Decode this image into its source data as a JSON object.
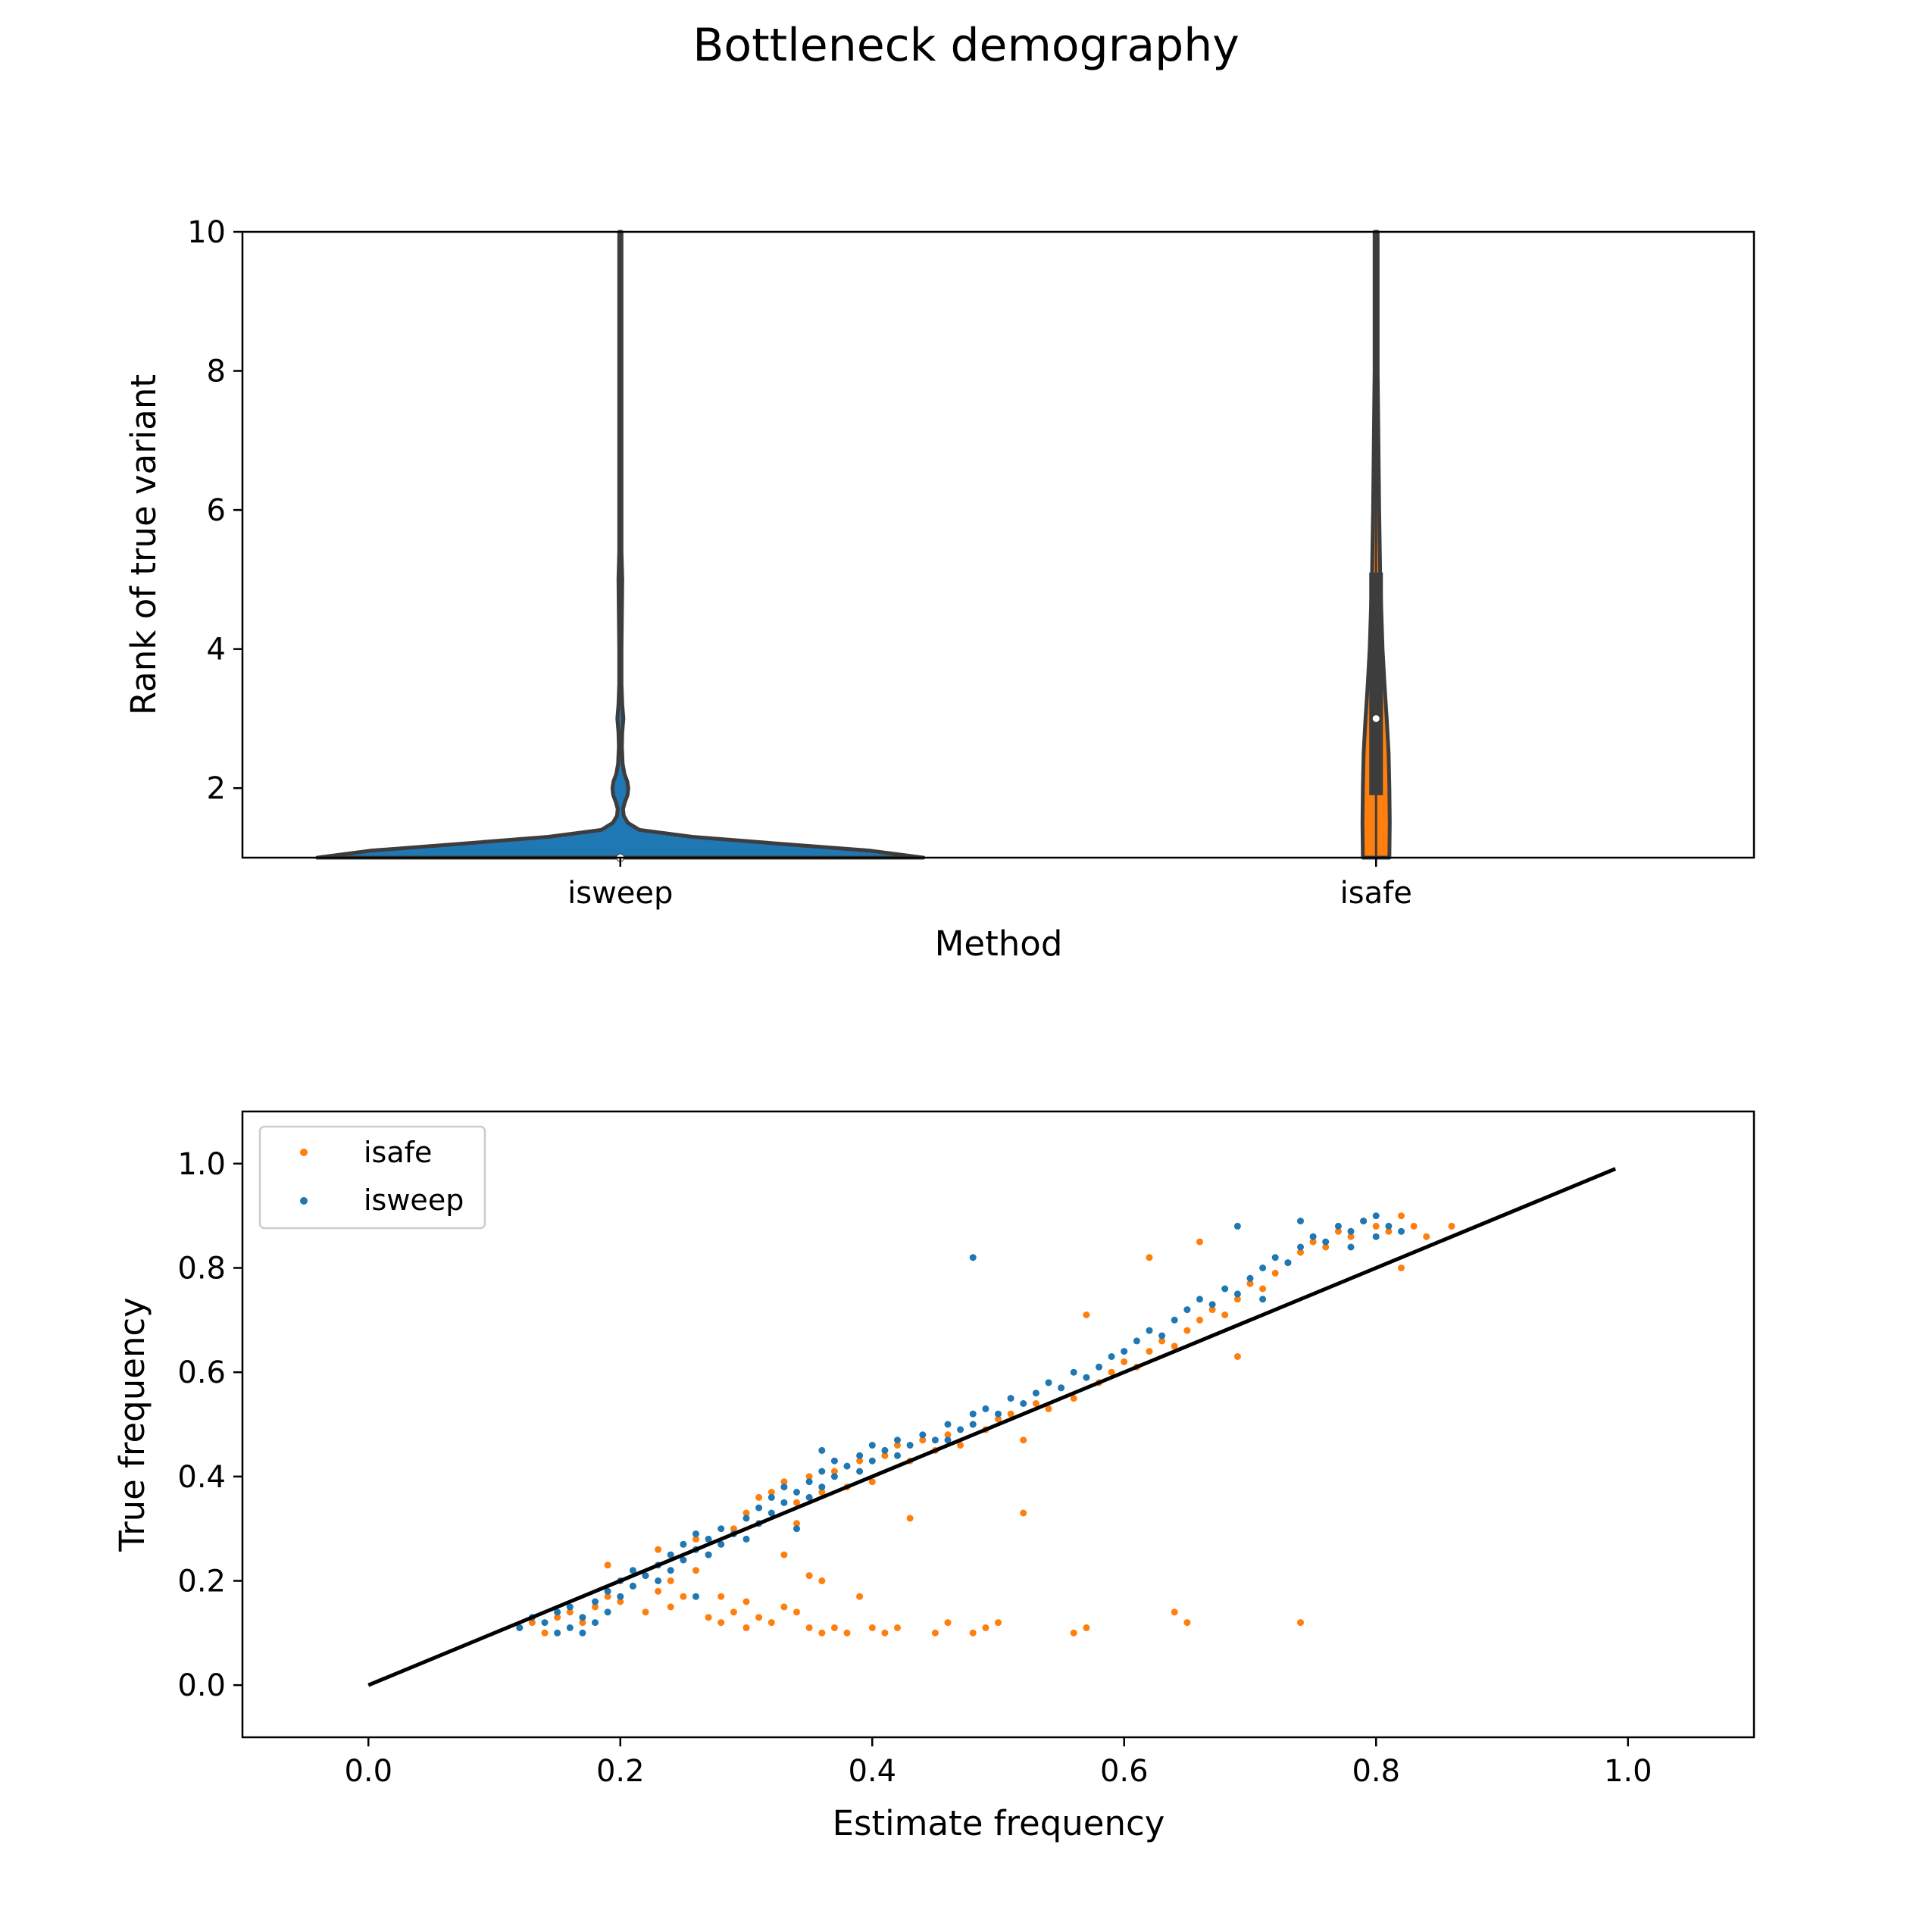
{
  "figure": {
    "title": "Bottleneck demography"
  },
  "colors": {
    "isweep": "#1f77b4",
    "isafe": "#ff7f0e",
    "outline": "#3d3d3d",
    "reference_line": "#000000"
  },
  "chart_data": [
    {
      "type": "violin",
      "title": "",
      "xlabel": "Method",
      "ylabel": "Rank of true variant",
      "categories": [
        "isweep",
        "isafe"
      ],
      "ylim": [
        1,
        10
      ],
      "yticks": [
        2,
        4,
        6,
        8,
        10
      ],
      "yticklabels": [
        "2",
        "4",
        "6",
        "8",
        "10"
      ],
      "grid": false,
      "series": [
        {
          "name": "isweep",
          "median": 1,
          "density_profile": [
            [
              1.0,
              0.8
            ],
            [
              1.1,
              0.66
            ],
            [
              1.2,
              0.42
            ],
            [
              1.3,
              0.19
            ],
            [
              1.4,
              0.05
            ],
            [
              1.5,
              0.02
            ],
            [
              1.6,
              0.009
            ],
            [
              1.7,
              0.007
            ],
            [
              1.8,
              0.012
            ],
            [
              1.9,
              0.019
            ],
            [
              2.0,
              0.021
            ],
            [
              2.1,
              0.018
            ],
            [
              2.2,
              0.011
            ],
            [
              2.35,
              0.006
            ],
            [
              2.6,
              0.004
            ],
            [
              2.8,
              0.005
            ],
            [
              3.0,
              0.008
            ],
            [
              3.2,
              0.005
            ],
            [
              3.5,
              0.003
            ],
            [
              4.0,
              0.003
            ],
            [
              4.5,
              0.004
            ],
            [
              5.0,
              0.005
            ],
            [
              5.4,
              0.003
            ],
            [
              6.0,
              0.003
            ],
            [
              10.0,
              0.003
            ]
          ]
        },
        {
          "name": "isafe",
          "q1": 1.9,
          "median": 3.0,
          "q3": 5.1,
          "density_profile": [
            [
              1.0,
              0.035
            ],
            [
              1.5,
              0.036
            ],
            [
              2.0,
              0.035
            ],
            [
              2.5,
              0.033
            ],
            [
              3.0,
              0.028
            ],
            [
              3.5,
              0.022
            ],
            [
              4.0,
              0.017
            ],
            [
              4.5,
              0.014
            ],
            [
              5.0,
              0.011
            ],
            [
              6.0,
              0.008
            ],
            [
              7.0,
              0.006
            ],
            [
              8.0,
              0.004
            ],
            [
              9.0,
              0.004
            ],
            [
              10.0,
              0.004
            ]
          ]
        }
      ]
    },
    {
      "type": "scatter",
      "title": "",
      "xlabel": "Estimate frequency",
      "ylabel": "True frequency",
      "xlim": [
        -0.1,
        1.1
      ],
      "ylim": [
        -0.1,
        1.1
      ],
      "xticks": [
        0.0,
        0.2,
        0.4,
        0.6,
        0.8,
        1.0
      ],
      "xticklabels": [
        "0.0",
        "0.2",
        "0.4",
        "0.6",
        "0.8",
        "1.0"
      ],
      "yticks": [
        0.0,
        0.2,
        0.4,
        0.6,
        0.8,
        1.0
      ],
      "yticklabels": [
        "0.0",
        "0.2",
        "0.4",
        "0.6",
        "0.8",
        "1.0"
      ],
      "grid": false,
      "legend": {
        "position": "top-left",
        "entries": [
          "isafe",
          "isweep"
        ]
      },
      "reference_line": {
        "x": [
          0.0,
          0.99
        ],
        "y": [
          0.0,
          0.99
        ]
      },
      "series": [
        {
          "name": "isafe",
          "points": [
            [
              0.12,
              0.11
            ],
            [
              0.13,
              0.12
            ],
            [
              0.14,
              0.1
            ],
            [
              0.15,
              0.13
            ],
            [
              0.16,
              0.14
            ],
            [
              0.17,
              0.12
            ],
            [
              0.18,
              0.15
            ],
            [
              0.19,
              0.17
            ],
            [
              0.2,
              0.16
            ],
            [
              0.19,
              0.23
            ],
            [
              0.21,
              0.19
            ],
            [
              0.22,
              0.21
            ],
            [
              0.23,
              0.18
            ],
            [
              0.24,
              0.2
            ],
            [
              0.22,
              0.14
            ],
            [
              0.24,
              0.15
            ],
            [
              0.25,
              0.17
            ],
            [
              0.23,
              0.26
            ],
            [
              0.25,
              0.24
            ],
            [
              0.26,
              0.22
            ],
            [
              0.27,
              0.25
            ],
            [
              0.27,
              0.13
            ],
            [
              0.28,
              0.12
            ],
            [
              0.28,
              0.17
            ],
            [
              0.29,
              0.14
            ],
            [
              0.3,
              0.11
            ],
            [
              0.3,
              0.16
            ],
            [
              0.31,
              0.13
            ],
            [
              0.32,
              0.12
            ],
            [
              0.33,
              0.15
            ],
            [
              0.34,
              0.14
            ],
            [
              0.35,
              0.11
            ],
            [
              0.36,
              0.1
            ],
            [
              0.37,
              0.11
            ],
            [
              0.38,
              0.1
            ],
            [
              0.4,
              0.11
            ],
            [
              0.41,
              0.1
            ],
            [
              0.42,
              0.11
            ],
            [
              0.45,
              0.1
            ],
            [
              0.46,
              0.12
            ],
            [
              0.48,
              0.1
            ],
            [
              0.49,
              0.11
            ],
            [
              0.5,
              0.12
            ],
            [
              0.56,
              0.1
            ],
            [
              0.57,
              0.11
            ],
            [
              0.64,
              0.14
            ],
            [
              0.65,
              0.12
            ],
            [
              0.74,
              0.12
            ],
            [
              0.52,
              0.33
            ],
            [
              0.43,
              0.32
            ],
            [
              0.33,
              0.25
            ],
            [
              0.35,
              0.21
            ],
            [
              0.36,
              0.2
            ],
            [
              0.39,
              0.17
            ],
            [
              0.29,
              0.3
            ],
            [
              0.3,
              0.33
            ],
            [
              0.31,
              0.36
            ],
            [
              0.32,
              0.37
            ],
            [
              0.33,
              0.39
            ],
            [
              0.34,
              0.35
            ],
            [
              0.35,
              0.4
            ],
            [
              0.36,
              0.37
            ],
            [
              0.37,
              0.41
            ],
            [
              0.38,
              0.38
            ],
            [
              0.39,
              0.43
            ],
            [
              0.4,
              0.39
            ],
            [
              0.41,
              0.44
            ],
            [
              0.42,
              0.46
            ],
            [
              0.43,
              0.43
            ],
            [
              0.44,
              0.47
            ],
            [
              0.45,
              0.45
            ],
            [
              0.46,
              0.48
            ],
            [
              0.47,
              0.46
            ],
            [
              0.48,
              0.5
            ],
            [
              0.49,
              0.49
            ],
            [
              0.5,
              0.51
            ],
            [
              0.51,
              0.52
            ],
            [
              0.52,
              0.47
            ],
            [
              0.53,
              0.54
            ],
            [
              0.54,
              0.53
            ],
            [
              0.55,
              0.57
            ],
            [
              0.56,
              0.55
            ],
            [
              0.57,
              0.71
            ],
            [
              0.58,
              0.58
            ],
            [
              0.59,
              0.6
            ],
            [
              0.6,
              0.62
            ],
            [
              0.61,
              0.61
            ],
            [
              0.62,
              0.64
            ],
            [
              0.63,
              0.66
            ],
            [
              0.64,
              0.65
            ],
            [
              0.65,
              0.68
            ],
            [
              0.66,
              0.7
            ],
            [
              0.67,
              0.72
            ],
            [
              0.68,
              0.71
            ],
            [
              0.69,
              0.74
            ],
            [
              0.7,
              0.77
            ],
            [
              0.71,
              0.76
            ],
            [
              0.72,
              0.79
            ],
            [
              0.73,
              0.81
            ],
            [
              0.74,
              0.83
            ],
            [
              0.75,
              0.85
            ],
            [
              0.76,
              0.84
            ],
            [
              0.77,
              0.87
            ],
            [
              0.78,
              0.86
            ],
            [
              0.79,
              0.89
            ],
            [
              0.8,
              0.88
            ],
            [
              0.81,
              0.87
            ],
            [
              0.82,
              0.9
            ],
            [
              0.83,
              0.88
            ],
            [
              0.84,
              0.86
            ],
            [
              0.86,
              0.88
            ],
            [
              0.62,
              0.82
            ],
            [
              0.66,
              0.85
            ],
            [
              0.69,
              0.63
            ],
            [
              0.82,
              0.8
            ],
            [
              0.28,
              0.27
            ],
            [
              0.26,
              0.28
            ],
            [
              0.31,
              0.31
            ],
            [
              0.34,
              0.31
            ]
          ]
        },
        {
          "name": "isweep",
          "points": [
            [
              0.12,
              0.11
            ],
            [
              0.13,
              0.13
            ],
            [
              0.14,
              0.12
            ],
            [
              0.15,
              0.1
            ],
            [
              0.15,
              0.14
            ],
            [
              0.16,
              0.11
            ],
            [
              0.16,
              0.15
            ],
            [
              0.17,
              0.13
            ],
            [
              0.17,
              0.1
            ],
            [
              0.18,
              0.12
            ],
            [
              0.18,
              0.16
            ],
            [
              0.19,
              0.14
            ],
            [
              0.19,
              0.18
            ],
            [
              0.2,
              0.17
            ],
            [
              0.2,
              0.2
            ],
            [
              0.21,
              0.19
            ],
            [
              0.21,
              0.22
            ],
            [
              0.22,
              0.21
            ],
            [
              0.23,
              0.23
            ],
            [
              0.23,
              0.2
            ],
            [
              0.24,
              0.25
            ],
            [
              0.24,
              0.22
            ],
            [
              0.25,
              0.27
            ],
            [
              0.25,
              0.24
            ],
            [
              0.26,
              0.26
            ],
            [
              0.26,
              0.29
            ],
            [
              0.27,
              0.28
            ],
            [
              0.27,
              0.25
            ],
            [
              0.28,
              0.3
            ],
            [
              0.28,
              0.27
            ],
            [
              0.29,
              0.29
            ],
            [
              0.3,
              0.32
            ],
            [
              0.3,
              0.28
            ],
            [
              0.31,
              0.34
            ],
            [
              0.31,
              0.31
            ],
            [
              0.32,
              0.33
            ],
            [
              0.32,
              0.36
            ],
            [
              0.33,
              0.35
            ],
            [
              0.33,
              0.38
            ],
            [
              0.34,
              0.37
            ],
            [
              0.35,
              0.36
            ],
            [
              0.35,
              0.39
            ],
            [
              0.36,
              0.38
            ],
            [
              0.36,
              0.41
            ],
            [
              0.37,
              0.4
            ],
            [
              0.37,
              0.43
            ],
            [
              0.38,
              0.42
            ],
            [
              0.39,
              0.44
            ],
            [
              0.39,
              0.41
            ],
            [
              0.4,
              0.43
            ],
            [
              0.4,
              0.46
            ],
            [
              0.41,
              0.45
            ],
            [
              0.42,
              0.47
            ],
            [
              0.42,
              0.44
            ],
            [
              0.43,
              0.46
            ],
            [
              0.44,
              0.48
            ],
            [
              0.45,
              0.47
            ],
            [
              0.46,
              0.5
            ],
            [
              0.46,
              0.47
            ],
            [
              0.47,
              0.49
            ],
            [
              0.48,
              0.52
            ],
            [
              0.48,
              0.5
            ],
            [
              0.49,
              0.53
            ],
            [
              0.5,
              0.52
            ],
            [
              0.51,
              0.55
            ],
            [
              0.52,
              0.54
            ],
            [
              0.53,
              0.56
            ],
            [
              0.54,
              0.58
            ],
            [
              0.55,
              0.57
            ],
            [
              0.56,
              0.6
            ],
            [
              0.57,
              0.59
            ],
            [
              0.58,
              0.61
            ],
            [
              0.59,
              0.63
            ],
            [
              0.6,
              0.64
            ],
            [
              0.61,
              0.66
            ],
            [
              0.62,
              0.68
            ],
            [
              0.63,
              0.67
            ],
            [
              0.64,
              0.7
            ],
            [
              0.65,
              0.72
            ],
            [
              0.66,
              0.74
            ],
            [
              0.67,
              0.73
            ],
            [
              0.68,
              0.76
            ],
            [
              0.69,
              0.75
            ],
            [
              0.7,
              0.78
            ],
            [
              0.71,
              0.8
            ],
            [
              0.72,
              0.82
            ],
            [
              0.73,
              0.81
            ],
            [
              0.74,
              0.84
            ],
            [
              0.75,
              0.86
            ],
            [
              0.76,
              0.85
            ],
            [
              0.77,
              0.88
            ],
            [
              0.78,
              0.87
            ],
            [
              0.79,
              0.89
            ],
            [
              0.8,
              0.86
            ],
            [
              0.81,
              0.88
            ],
            [
              0.82,
              0.87
            ],
            [
              0.69,
              0.88
            ],
            [
              0.74,
              0.89
            ],
            [
              0.78,
              0.84
            ],
            [
              0.8,
              0.9
            ],
            [
              0.48,
              0.82
            ],
            [
              0.36,
              0.45
            ],
            [
              0.26,
              0.17
            ],
            [
              0.34,
              0.3
            ],
            [
              0.71,
              0.74
            ]
          ]
        }
      ]
    }
  ]
}
